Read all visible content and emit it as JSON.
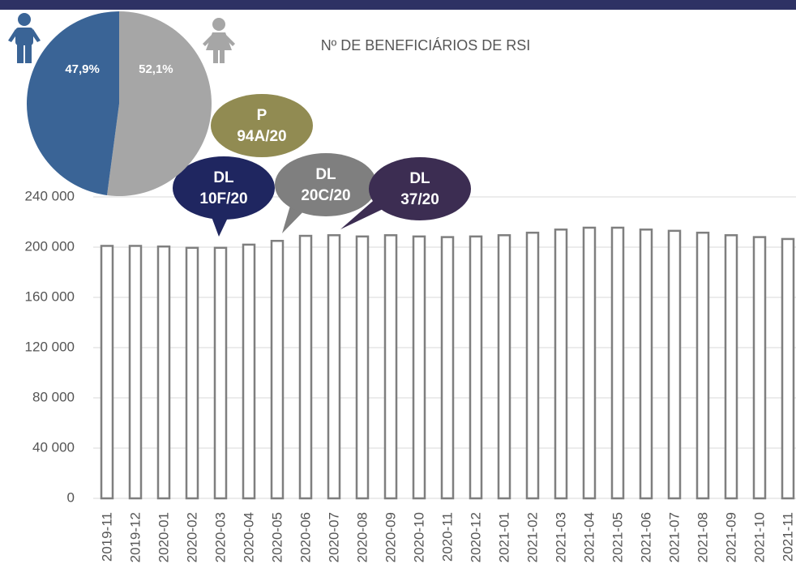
{
  "chart_data": [
    {
      "type": "bar",
      "title": "Nº DE BENEFICIÁRIOS DE RSI",
      "categories": [
        "2019-11",
        "2019-12",
        "2020-01",
        "2020-02",
        "2020-03",
        "2020-04",
        "2020-05",
        "2020-06",
        "2020-07",
        "2020-08",
        "2020-09",
        "2020-10",
        "2020-11",
        "2020-12",
        "2021-01",
        "2021-02",
        "2021-03",
        "2021-04",
        "2021-05",
        "2021-06",
        "2021-07",
        "2021-08",
        "2021-09",
        "2021-10",
        "2021-11"
      ],
      "values": [
        201000,
        201000,
        200500,
        199500,
        199500,
        202000,
        205000,
        209000,
        209500,
        208500,
        209500,
        208500,
        208000,
        208500,
        209500,
        211500,
        214000,
        215500,
        215500,
        214000,
        213000,
        211500,
        209500,
        208000,
        206500
      ],
      "color": "#7f7f7f",
      "ylim": [
        0,
        240000
      ],
      "yticks": [
        0,
        {
          "value": 40000,
          "label": "40 000"
        },
        {
          "value": 80000,
          "label": "80 000"
        },
        {
          "value": 120000,
          "label": "120 000"
        },
        {
          "value": 160000,
          "label": "160 000"
        },
        {
          "value": 200000,
          "label": "200 000"
        },
        {
          "value": 240000,
          "label": "240 000"
        }
      ],
      "grid": true,
      "annotations": [
        {
          "text": [
            "P",
            "94A/20"
          ],
          "color": "#918b52"
        },
        {
          "text": [
            "DL",
            "10F/20"
          ],
          "color": "#1f2660"
        },
        {
          "text": [
            "DL",
            "20C/20"
          ],
          "color": "#7f7f7f"
        },
        {
          "text": [
            "DL",
            "37/20"
          ],
          "color": "#3c2d52"
        }
      ]
    },
    {
      "type": "pie",
      "values": [
        52.1,
        47.9
      ],
      "value_labels": [
        "52,1%",
        "47,9%"
      ],
      "colors": [
        "#a6a6a6",
        "#3a6496"
      ]
    }
  ]
}
